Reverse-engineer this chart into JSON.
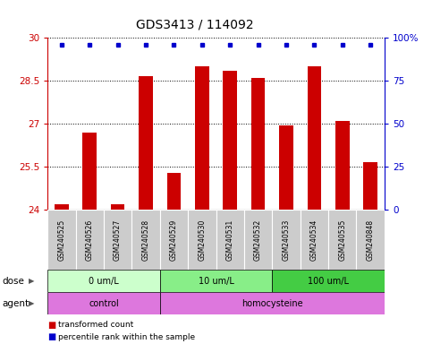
{
  "title": "GDS3413 / 114092",
  "samples": [
    "GSM240525",
    "GSM240526",
    "GSM240527",
    "GSM240528",
    "GSM240529",
    "GSM240530",
    "GSM240531",
    "GSM240532",
    "GSM240533",
    "GSM240534",
    "GSM240535",
    "GSM240848"
  ],
  "bar_values": [
    24.2,
    26.7,
    24.2,
    28.65,
    25.3,
    29.0,
    28.85,
    28.6,
    26.95,
    29.0,
    27.1,
    25.65
  ],
  "percentile_y": [
    29.75,
    29.75,
    29.75,
    29.75,
    29.75,
    29.75,
    29.75,
    29.75,
    29.75,
    29.75,
    29.75,
    29.75
  ],
  "bar_color": "#cc0000",
  "percentile_color": "#0000cc",
  "ymin": 24,
  "ymax": 30,
  "yticks": [
    24,
    25.5,
    27,
    28.5,
    30
  ],
  "ytick_labels": [
    "24",
    "25.5",
    "27",
    "28.5",
    "30"
  ],
  "right_yticks": [
    0,
    25,
    50,
    75,
    100
  ],
  "right_ytick_labels": [
    "0",
    "25",
    "50",
    "75",
    "100%"
  ],
  "dose_groups": [
    {
      "label": "0 um/L",
      "start": 0,
      "end": 4,
      "color": "#ccffcc"
    },
    {
      "label": "10 um/L",
      "start": 4,
      "end": 8,
      "color": "#88ee88"
    },
    {
      "label": "100 um/L",
      "start": 8,
      "end": 12,
      "color": "#44cc44"
    }
  ],
  "agent_groups": [
    {
      "label": "control",
      "start": 0,
      "end": 4
    },
    {
      "label": "homocysteine",
      "start": 4,
      "end": 12
    }
  ],
  "agent_color": "#dd77dd",
  "dose_label": "dose",
  "agent_label": "agent",
  "legend_bar_label": "transformed count",
  "legend_pct_label": "percentile rank within the sample",
  "axis_color_left": "#cc0000",
  "axis_color_right": "#0000cc",
  "sample_bg_color": "#cccccc",
  "bar_width": 0.5,
  "title_fontsize": 10
}
